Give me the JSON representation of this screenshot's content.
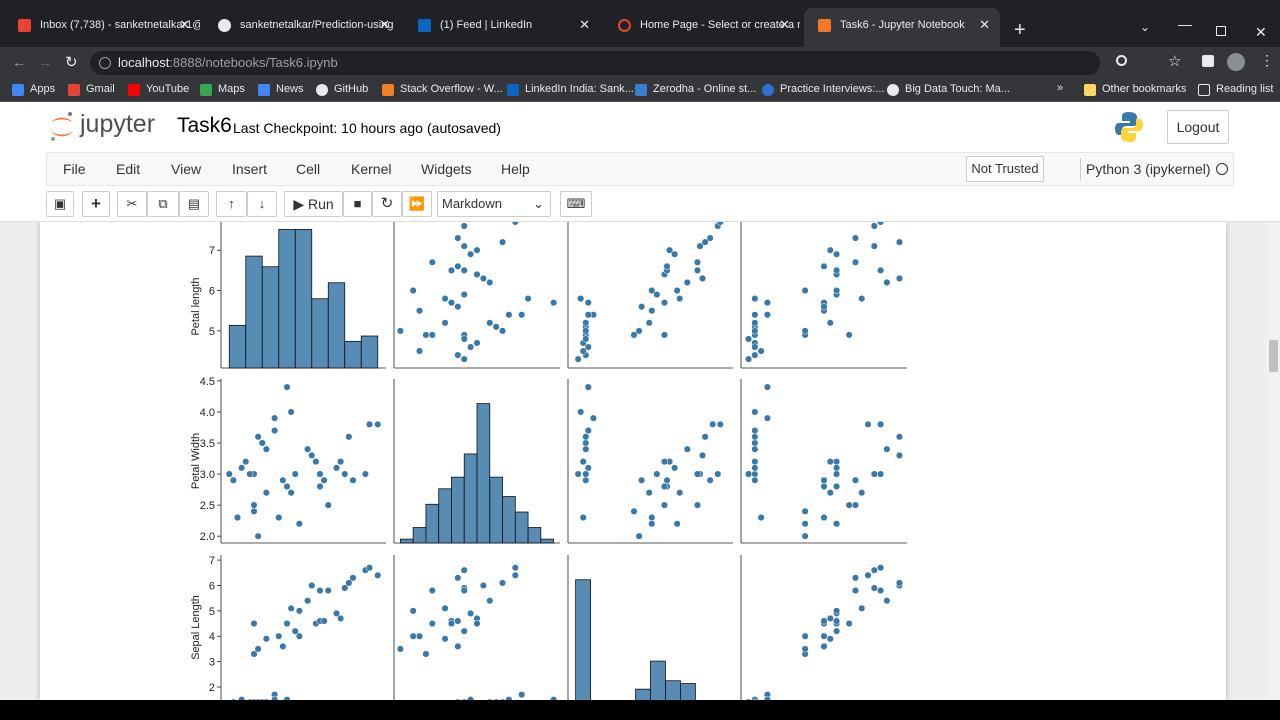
{
  "browser": {
    "tabs": [
      "Inbox (7,738) - sanketnetalkar1@",
      "sanketnetalkar/Prediction-using",
      "(1) Feed | LinkedIn",
      "Home Page - Select or create a n",
      "Task6 - Jupyter Notebook"
    ],
    "url_host": "localhost",
    "url_path": ":8888/notebooks/Task6.ipynb",
    "bookmarks": [
      "Apps",
      "Gmail",
      "YouTube",
      "Maps",
      "News",
      "GitHub",
      "Stack Overflow - W...",
      "LinkedIn India: Sank...",
      "Zerodha - Online st...",
      "Practice Interviews:...",
      "Big Data Touch: Ma..."
    ],
    "other_bookmarks": "Other bookmarks",
    "reading_list": "Reading list"
  },
  "jupyter": {
    "logo": "jupyter",
    "notebook": "Task6",
    "checkpoint": "Last Checkpoint: 10 hours ago",
    "autosaved": "(autosaved)",
    "logout": "Logout",
    "menu": [
      "File",
      "Edit",
      "View",
      "Insert",
      "Cell",
      "Kernel",
      "Widgets",
      "Help"
    ],
    "trusted": "Not Trusted",
    "kernel": "Python 3 (ipykernel)",
    "run": "Run",
    "cell_type": "Markdown"
  },
  "figure": {
    "color": "#3a78a8",
    "row_labels": [
      "Petal length",
      "Petal Width",
      "Sepal Length"
    ],
    "rows": [
      {
        "ylim": [
          4.08,
          8.12
        ],
        "yticks": [
          5,
          6,
          7
        ]
      },
      {
        "ylim": [
          1.89,
          4.53
        ],
        "yticks": [
          {
            "value": 2,
            "label": "2.0"
          },
          2.5,
          {
            "value": 3,
            "label": "3.0"
          },
          3.5,
          {
            "value": 4,
            "label": "4.0"
          },
          4.5
        ]
      },
      {
        "ylim": [
          0.7,
          7.2
        ],
        "yticks": [
          2,
          3,
          4,
          5,
          6,
          7
        ]
      }
    ],
    "xlims": [
      [
        4.1,
        8.1
      ],
      [
        1.9,
        4.5
      ],
      [
        0.7,
        7.2
      ],
      [
        -0.02,
        2.62
      ]
    ],
    "hists": [
      {
        "bins": [
          4.3,
          4.7,
          5.1,
          5.5,
          5.9,
          6.3,
          6.7,
          7.1,
          7.5,
          7.9
        ],
        "counts": [
          8,
          21,
          19,
          26,
          26,
          13,
          16,
          5,
          6
        ]
      },
      {
        "bins": [
          2.0,
          2.2,
          2.4,
          2.6,
          2.8,
          3.0,
          3.2,
          3.4,
          3.6,
          3.8,
          4.0,
          4.2,
          4.4
        ],
        "counts": [
          1,
          4,
          10,
          14,
          17,
          23,
          36,
          17,
          12,
          8,
          4,
          1
        ]
      },
      {
        "bins": [
          1.0,
          1.59,
          2.18,
          2.77,
          3.36,
          3.95,
          4.54,
          5.13,
          5.72,
          6.31,
          6.9
        ],
        "counts": [
          50,
          1,
          0,
          1,
          11,
          21,
          14,
          13,
          1,
          0
        ]
      }
    ],
    "samples": [
      [
        5.1,
        3.5,
        1.4,
        0.2
      ],
      [
        4.9,
        3.0,
        1.4,
        0.2
      ],
      [
        4.7,
        3.2,
        1.3,
        0.2
      ],
      [
        4.6,
        3.1,
        1.5,
        0.2
      ],
      [
        5.0,
        3.6,
        1.4,
        0.2
      ],
      [
        5.4,
        3.9,
        1.7,
        0.4
      ],
      [
        4.4,
        2.9,
        1.4,
        0.2
      ],
      [
        5.4,
        3.7,
        1.5,
        0.2
      ],
      [
        4.8,
        3.0,
        1.4,
        0.1
      ],
      [
        4.3,
        3.0,
        1.1,
        0.1
      ],
      [
        5.8,
        4.0,
        1.2,
        0.2
      ],
      [
        5.7,
        4.4,
        1.5,
        0.4
      ],
      [
        5.2,
        3.4,
        1.4,
        0.2
      ],
      [
        4.5,
        2.3,
        1.3,
        0.3
      ],
      [
        7.0,
        3.2,
        4.7,
        1.4
      ],
      [
        6.4,
        3.2,
        4.5,
        1.5
      ],
      [
        6.9,
        3.1,
        4.9,
        1.5
      ],
      [
        5.5,
        2.3,
        4.0,
        1.3
      ],
      [
        6.5,
        2.8,
        4.6,
        1.5
      ],
      [
        5.7,
        2.8,
        4.5,
        1.3
      ],
      [
        4.9,
        2.4,
        3.3,
        1.0
      ],
      [
        6.6,
        2.9,
        4.6,
        1.3
      ],
      [
        5.2,
        2.7,
        3.9,
        1.4
      ],
      [
        5.0,
        2.0,
        3.5,
        1.0
      ],
      [
        5.9,
        3.0,
        4.2,
        1.5
      ],
      [
        6.0,
        2.2,
        4.0,
        1.0
      ],
      [
        5.6,
        2.9,
        3.6,
        1.3
      ],
      [
        6.3,
        3.3,
        6.0,
        2.5
      ],
      [
        5.8,
        2.7,
        5.1,
        1.9
      ],
      [
        7.1,
        3.0,
        5.9,
        2.1
      ],
      [
        6.5,
        3.0,
        5.8,
        2.2
      ],
      [
        7.6,
        3.0,
        6.6,
        2.1
      ],
      [
        4.9,
        2.5,
        4.5,
        1.7
      ],
      [
        7.3,
        2.9,
        6.3,
        1.8
      ],
      [
        6.7,
        2.5,
        5.8,
        1.8
      ],
      [
        7.2,
        3.6,
        6.1,
        2.5
      ],
      [
        7.7,
        3.8,
        6.7,
        2.2
      ],
      [
        6.0,
        2.2,
        5.0,
        1.5
      ],
      [
        7.9,
        3.8,
        6.4,
        2.0
      ],
      [
        6.2,
        3.4,
        5.4,
        2.3
      ]
    ]
  }
}
